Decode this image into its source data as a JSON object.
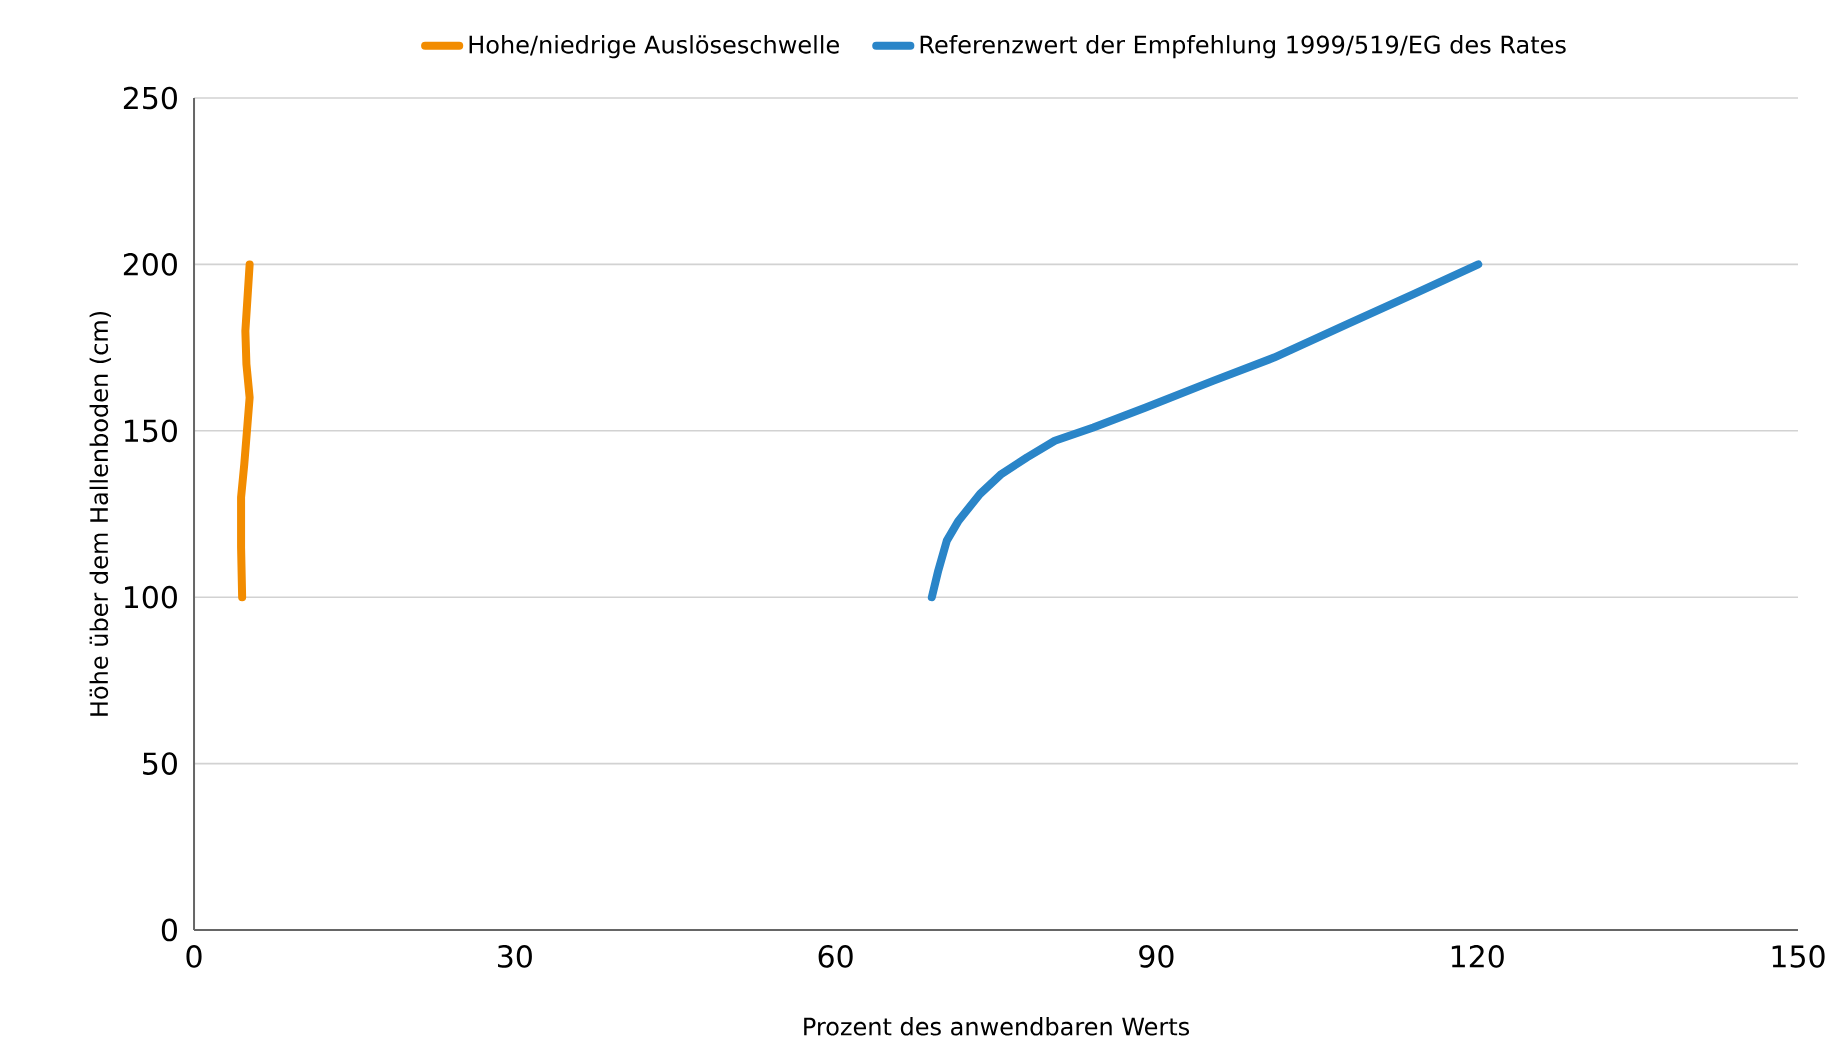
{
  "chart_data": {
    "type": "line",
    "xlabel": "Prozent des anwendbaren Werts",
    "ylabel": "Höhe über dem Hallenboden (cm)",
    "xlim": [
      0,
      150
    ],
    "xticks": [
      0,
      30,
      60,
      90,
      120,
      150
    ],
    "ylim": [
      0,
      250
    ],
    "yticks": [
      0,
      50,
      100,
      150,
      200,
      250
    ],
    "grid": "y",
    "legend": "top",
    "marker": "none",
    "line_style": "solid",
    "series": [
      {
        "name": "Hohe/niedrige Auslöseschwelle",
        "color": "#f28c00",
        "x": [
          4.5,
          4.4,
          4.4,
          4.7,
          5.2,
          4.9,
          4.8,
          5.2
        ],
        "values": [
          100,
          115,
          130,
          140,
          160,
          170,
          180,
          200
        ]
      },
      {
        "name": "Referenzwert der Empfehlung 1999/519/EG des Rates",
        "color": "#2a85c8",
        "x": [
          69,
          69.6,
          70.4,
          71.5,
          73.5,
          75.5,
          77.9,
          80.5,
          84.1,
          89,
          95.3,
          101,
          107.8,
          114,
          120.1
        ],
        "values": [
          100,
          108,
          117,
          123,
          131,
          137,
          142,
          147,
          151,
          157,
          165,
          172,
          182,
          191,
          200
        ]
      }
    ]
  }
}
